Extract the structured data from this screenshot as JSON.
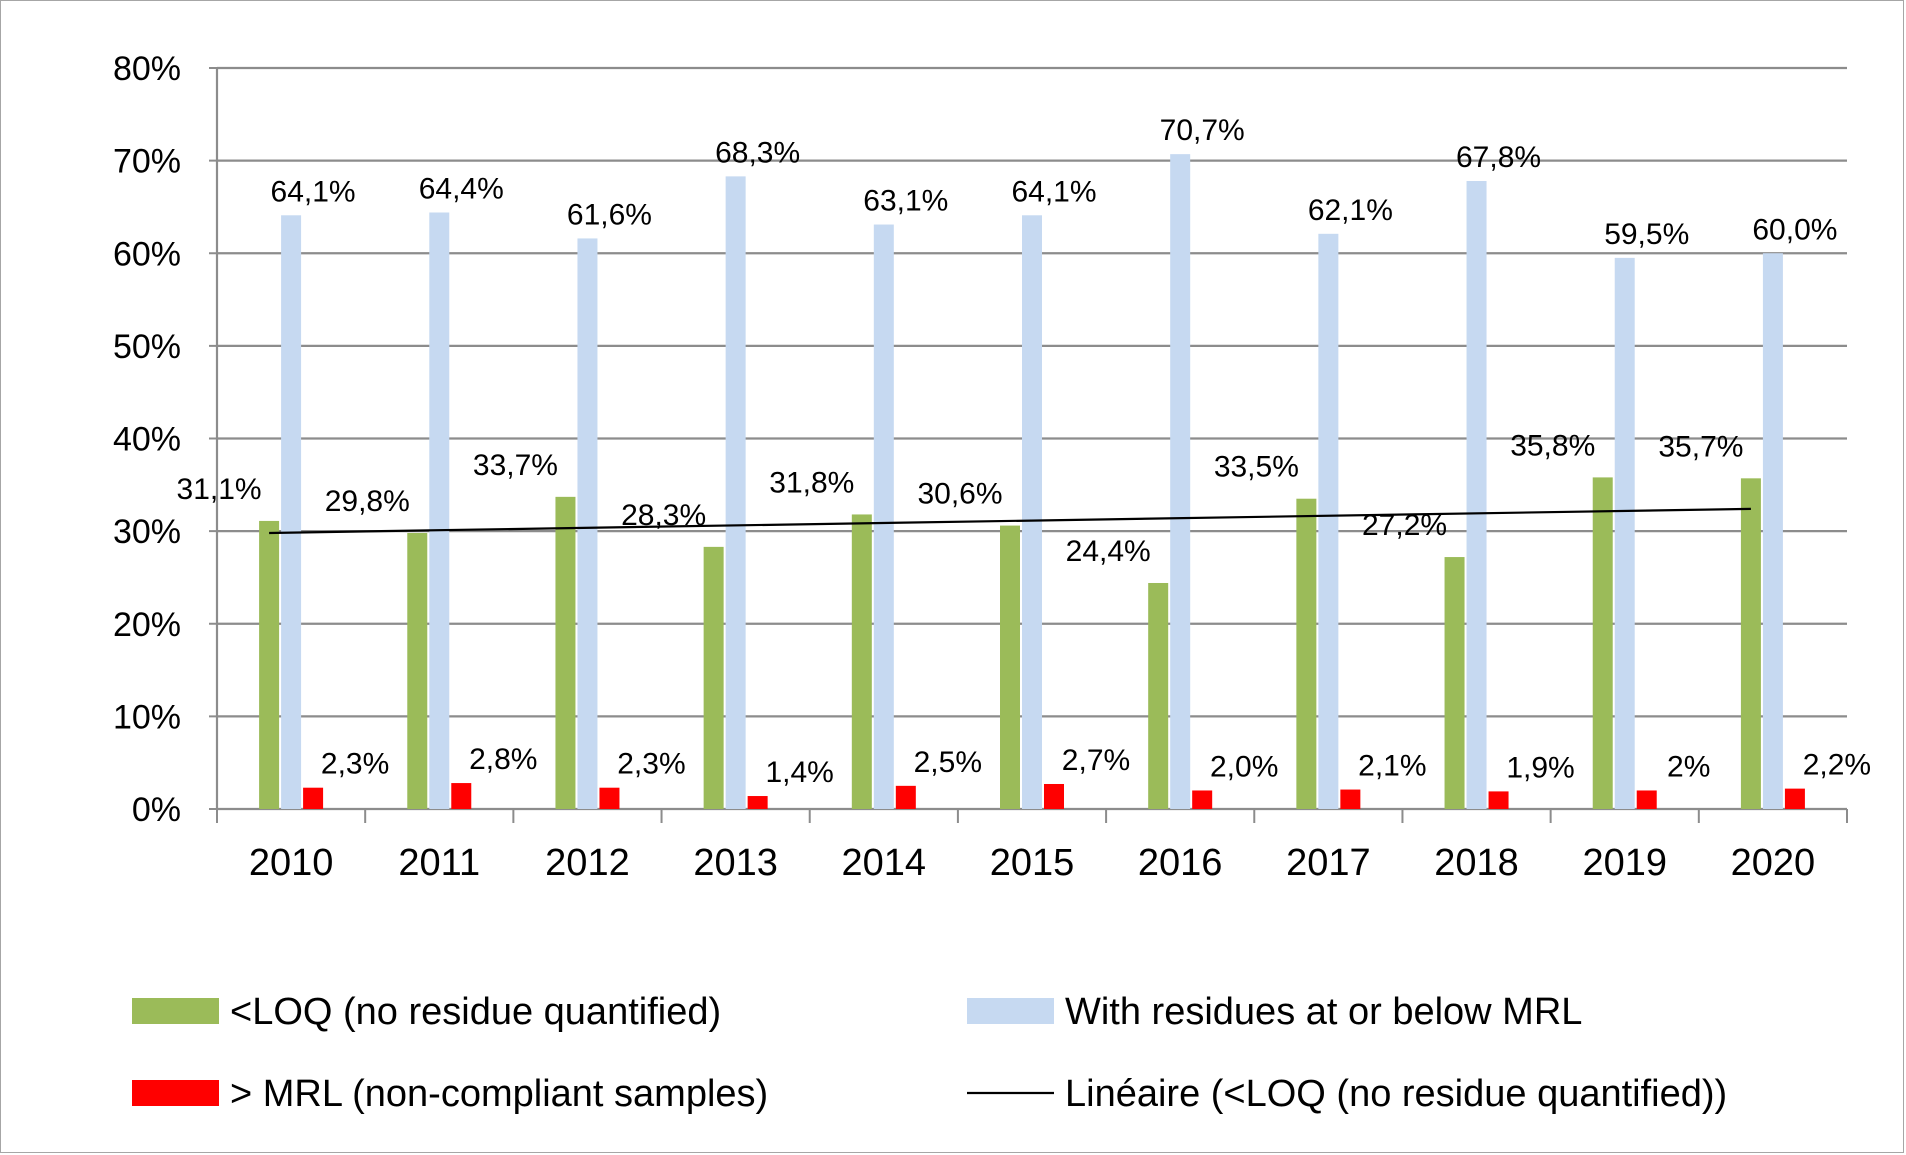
{
  "chart_data": {
    "type": "bar",
    "title": "",
    "xlabel": "",
    "ylabel": "",
    "ylim": [
      0,
      0.8
    ],
    "y_ticks": [
      0,
      0.1,
      0.2,
      0.3,
      0.4,
      0.5,
      0.6,
      0.7,
      0.8
    ],
    "y_tick_labels": [
      "0%",
      "10%",
      "20%",
      "30%",
      "40%",
      "50%",
      "60%",
      "70%",
      "80%"
    ],
    "grid": true,
    "legend_position": "bottom",
    "categories": [
      "2010",
      "2011",
      "2012",
      "2013",
      "2014",
      "2015",
      "2016",
      "2017",
      "2018",
      "2019",
      "2020"
    ],
    "series": [
      {
        "name": "<LOQ (no residue quantified)",
        "color": "#9bbb59",
        "values": [
          0.311,
          0.298,
          0.337,
          0.283,
          0.318,
          0.306,
          0.244,
          0.335,
          0.272,
          0.358,
          0.357
        ],
        "labels": [
          "31,1%",
          "29,8%",
          "33,7%",
          "28,3%",
          "31,8%",
          "30,6%",
          "24,4%",
          "33,5%",
          "27,2%",
          "35,8%",
          "35,7%"
        ]
      },
      {
        "name": "With residues at or below MRL",
        "color": "#c6d9f1",
        "values": [
          0.641,
          0.644,
          0.616,
          0.683,
          0.631,
          0.641,
          0.707,
          0.621,
          0.678,
          0.595,
          0.6
        ],
        "labels": [
          "64,1%",
          "64,4%",
          "61,6%",
          "68,3%",
          "63,1%",
          "64,1%",
          "70,7%",
          "62,1%",
          "67,8%",
          "59,5%",
          "60,0%"
        ]
      },
      {
        "name": "> MRL (non-compliant samples)",
        "color": "#ff0000",
        "values": [
          0.023,
          0.028,
          0.023,
          0.014,
          0.025,
          0.027,
          0.02,
          0.021,
          0.019,
          0.02,
          0.022
        ],
        "labels": [
          "2,3%",
          "2,8%",
          "2,3%",
          "1,4%",
          "2,5%",
          "2,7%",
          "2,0%",
          "2,1%",
          "1,9%",
          "2%",
          "2,2%"
        ]
      }
    ],
    "trendline": {
      "name": "Linéaire (<LOQ (no residue quantified))",
      "color": "#000000",
      "start_value": 0.298,
      "end_value": 0.324
    }
  }
}
